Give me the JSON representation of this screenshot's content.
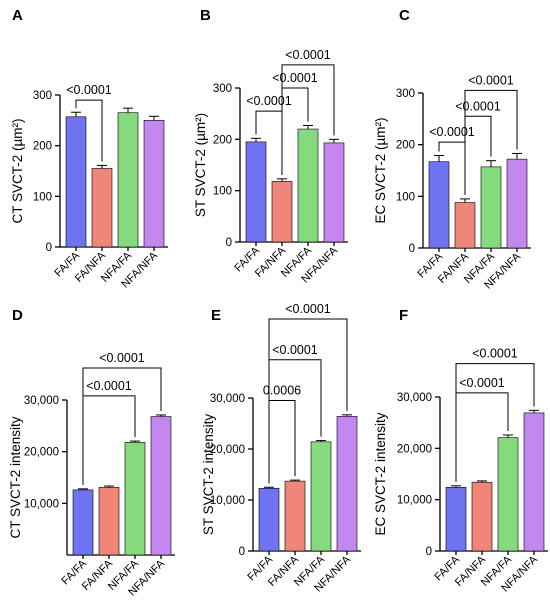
{
  "colors": {
    "FA/FA": "#6f73f2",
    "FA/NFA": "#f0867a",
    "NFA/FA": "#86da7e",
    "NFA/NFA": "#c487f0"
  },
  "chart_data": [
    {
      "panel": "A",
      "type": "bar",
      "categories": [
        "FA/FA",
        "FA/NFA",
        "NFA/FA",
        "NFA/NFA"
      ],
      "values": [
        257,
        155,
        265,
        250
      ],
      "errors": [
        9,
        6,
        9,
        8
      ],
      "ylabel": "CT SVCT-2 (µm²)",
      "ylim": [
        0,
        300
      ],
      "yticks": [
        0,
        100,
        200,
        300
      ],
      "ytick_labels": [
        "0",
        "100",
        "200",
        "300"
      ],
      "comparisons": [
        {
          "from": 0,
          "to": 1,
          "label": "<0.0001",
          "y": 290
        }
      ]
    },
    {
      "panel": "B",
      "type": "bar",
      "categories": [
        "FA/FA",
        "FA/NFA",
        "NFA/FA",
        "NFA/NFA"
      ],
      "values": [
        195,
        118,
        220,
        193
      ],
      "errors": [
        7,
        5,
        7,
        7
      ],
      "ylabel": "ST SVCT-2 (µm²)",
      "ylim": [
        0,
        300
      ],
      "yticks": [
        0,
        100,
        200,
        300
      ],
      "ytick_labels": [
        "0",
        "100",
        "200",
        "300"
      ],
      "comparisons": [
        {
          "from": 0,
          "to": 1,
          "label": "<0.0001",
          "y": 255
        },
        {
          "from": 1,
          "to": 2,
          "label": "<0.0001",
          "y": 300
        },
        {
          "from": 1,
          "to": 3,
          "label": "<0.0001",
          "y": 345
        }
      ]
    },
    {
      "panel": "C",
      "type": "bar",
      "categories": [
        "FA/FA",
        "FA/NFA",
        "NFA/FA",
        "NFA/NFA"
      ],
      "values": [
        167,
        88,
        157,
        172
      ],
      "errors": [
        12,
        7,
        12,
        11
      ],
      "ylabel": "EC SVCT-2 (µm²)",
      "ylim": [
        0,
        300
      ],
      "yticks": [
        0,
        100,
        200,
        300
      ],
      "ytick_labels": [
        "0",
        "100",
        "200",
        "300"
      ],
      "comparisons": [
        {
          "from": 0,
          "to": 1,
          "label": "<0.0001",
          "y": 205
        },
        {
          "from": 1,
          "to": 2,
          "label": "<0.0001",
          "y": 255
        },
        {
          "from": 1,
          "to": 3,
          "label": "<0.0001",
          "y": 305
        }
      ]
    },
    {
      "panel": "D",
      "type": "bar",
      "categories": [
        "FA/FA",
        "FA/NFA",
        "NFA/FA",
        "NFA/NFA"
      ],
      "values": [
        12600,
        13100,
        21800,
        26800
      ],
      "errors": [
        200,
        250,
        250,
        300
      ],
      "ylabel": "CT SVCT-2 intensity",
      "ylim": [
        0,
        30000
      ],
      "yticks": [
        10000,
        20000,
        30000
      ],
      "ytick_labels": [
        "10,000",
        "20,000",
        "30,000"
      ],
      "comparisons": [
        {
          "from": 0,
          "to": 2,
          "label": "<0.0001",
          "y": 30800
        },
        {
          "from": 0,
          "to": 3,
          "label": "<0.0001",
          "y": 36200
        }
      ]
    },
    {
      "panel": "E",
      "type": "bar",
      "categories": [
        "FA/FA",
        "FA/NFA",
        "NFA/FA",
        "NFA/NFA"
      ],
      "values": [
        12300,
        13700,
        21400,
        26400
      ],
      "errors": [
        200,
        200,
        250,
        300
      ],
      "ylabel": "ST SVCT-2 intensity",
      "ylim": [
        0,
        30000
      ],
      "yticks": [
        0,
        10000,
        20000,
        30000
      ],
      "ytick_labels": [
        "0",
        "10,000",
        "20,000",
        "30,000"
      ],
      "comparisons": [
        {
          "from": 0,
          "to": 1,
          "label": "0.0006",
          "y": 29500
        },
        {
          "from": 0,
          "to": 2,
          "label": "<0.0001",
          "y": 37500
        },
        {
          "from": 0,
          "to": 3,
          "label": "<0.0001",
          "y": 45500
        }
      ]
    },
    {
      "panel": "F",
      "type": "bar",
      "categories": [
        "FA/FA",
        "FA/NFA",
        "NFA/FA",
        "NFA/NFA"
      ],
      "values": [
        12400,
        13400,
        22100,
        26900
      ],
      "errors": [
        300,
        250,
        500,
        500
      ],
      "ylabel": "EC SVCT-2 intensity",
      "ylim": [
        0,
        30000
      ],
      "yticks": [
        0,
        10000,
        20000,
        30000
      ],
      "ytick_labels": [
        "0",
        "10,000",
        "20,000",
        "30,000"
      ],
      "comparisons": [
        {
          "from": 0,
          "to": 2,
          "label": "<0.0001",
          "y": 30800
        },
        {
          "from": 0,
          "to": 3,
          "label": "<0.0001",
          "y": 36500
        }
      ]
    }
  ]
}
